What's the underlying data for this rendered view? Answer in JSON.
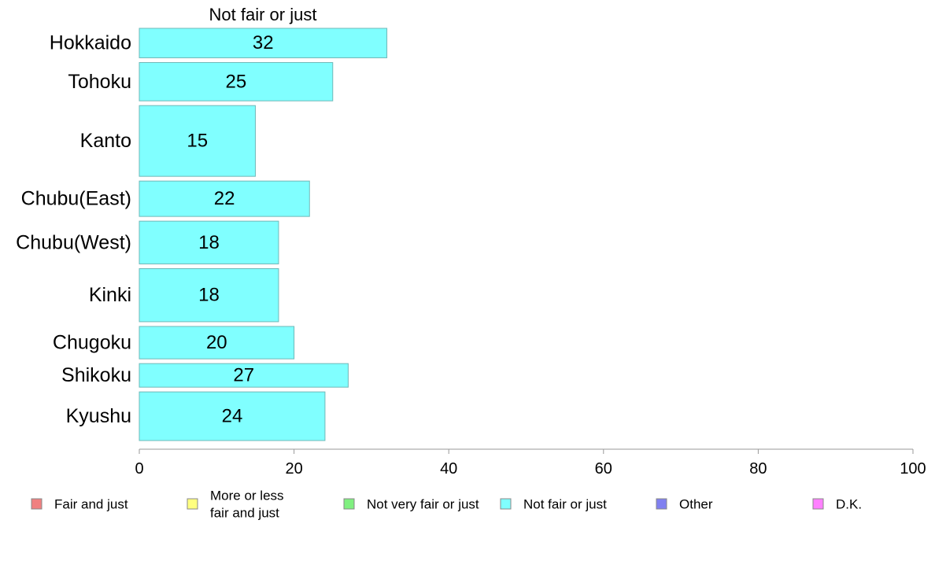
{
  "chart_data": {
    "type": "bar",
    "orientation": "horizontal",
    "title": "Not fair or just",
    "categories": [
      "Hokkaido",
      "Tohoku",
      "Kanto",
      "Chubu(East)",
      "Chubu(West)",
      "Kinki",
      "Chugoku",
      "Shikoku",
      "Kyushu"
    ],
    "series": [
      {
        "name": "Not fair or just",
        "values": [
          32,
          25,
          15,
          22,
          18,
          18,
          20,
          27,
          24
        ],
        "color": "#80ffff"
      }
    ],
    "relative_sample_size": [
      1.0,
      1.3,
      2.4,
      1.2,
      1.45,
      1.8,
      1.1,
      0.8,
      1.65
    ],
    "x_ticks": [
      0,
      20,
      40,
      60,
      80,
      100
    ],
    "xlim": [
      0,
      100
    ],
    "grid": false,
    "legend_position": "bottom",
    "legend": [
      {
        "label": "Fair and just",
        "color": "#f08080"
      },
      {
        "label": "More or less\nfair and just",
        "color": "#ffff80"
      },
      {
        "label": "Not very fair or just",
        "color": "#80f080"
      },
      {
        "label": "Not fair or just",
        "color": "#80ffff"
      },
      {
        "label": "Other",
        "color": "#8080f0"
      },
      {
        "label": "D.K.",
        "color": "#ff80ff"
      }
    ]
  }
}
